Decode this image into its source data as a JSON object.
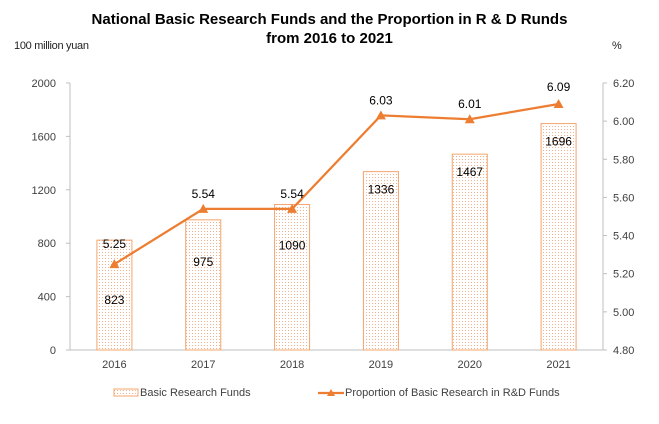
{
  "chart_data": {
    "type": "bar",
    "title_line1": "National Basic Research Funds and the Proportion in R & D Runds",
    "title_line2": "from 2016 to 2021",
    "ylabel": "100 million  yuan",
    "y2label": "%",
    "categories": [
      "2016",
      "2017",
      "2018",
      "2019",
      "2020",
      "2021"
    ],
    "ylim": [
      0,
      2000
    ],
    "yticks": [
      0,
      400,
      800,
      1200,
      1600,
      2000
    ],
    "y2lim": [
      4.8,
      6.2
    ],
    "y2ticks": [
      "4.80",
      "5.00",
      "5.20",
      "5.40",
      "5.60",
      "5.80",
      "6.00",
      "6.20"
    ],
    "grid": false,
    "legend_position": "bottom",
    "series": [
      {
        "name": "Basic Research Funds",
        "type": "bar",
        "axis": "left",
        "values": [
          823,
          975,
          1090,
          1336,
          1467,
          1696
        ],
        "labels": [
          "823",
          "975",
          "1090",
          "1336",
          "1467",
          "1696"
        ],
        "color": "#f4a46e"
      },
      {
        "name": "Proportion of Basic Research in R&D Funds",
        "type": "line",
        "axis": "right",
        "marker": "triangle",
        "values": [
          5.25,
          5.54,
          5.54,
          6.03,
          6.01,
          6.09
        ],
        "labels": [
          "5.25",
          "5.54",
          "5.54",
          "6.03",
          "6.01",
          "6.09"
        ],
        "color": "#ed7d31"
      }
    ]
  }
}
